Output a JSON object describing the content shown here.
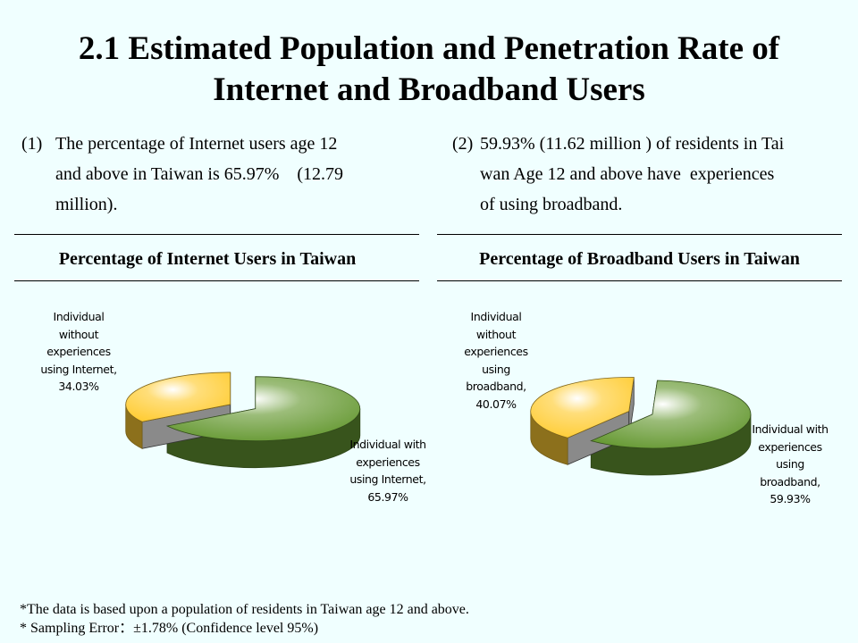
{
  "title_line1": "2.1 Estimated Population and Penetration Rate of",
  "title_line2": "Internet and Broadband Users",
  "intro_left": {
    "num": "(1)",
    "line1": "The percentage of Internet users age 12",
    "line2": "and above in Taiwan is 65.97%    (12.79",
    "line3": "million)."
  },
  "intro_right": {
    "num": "(2)",
    "line1": "59.93% (11.62 million ) of residents in Tai",
    "line2": "wan Age 12 and above have  experiences",
    "line3": "of using broadband."
  },
  "chart_data": [
    {
      "type": "pie",
      "title": "Percentage of Internet Users in Taiwan",
      "slices": [
        {
          "label_lines": [
            "Individual with",
            "experiences",
            "using Internet,",
            "65.97%"
          ],
          "value": 65.97,
          "color": "#669933"
        },
        {
          "label_lines": [
            "Individual",
            "without",
            "experiences",
            "using Internet,",
            "34.03%"
          ],
          "value": 34.03,
          "color": "#ffcc33"
        }
      ]
    },
    {
      "type": "pie",
      "title": "Percentage of Broadband Users in Taiwan",
      "slices": [
        {
          "label_lines": [
            "Individual with",
            "experiences",
            "using",
            "broadband,",
            "59.93%"
          ],
          "value": 59.93,
          "color": "#669933"
        },
        {
          "label_lines": [
            "Individual",
            "without",
            "experiences",
            "using",
            "broadband,",
            "40.07%"
          ],
          "value": 40.07,
          "color": "#ffcc33"
        }
      ]
    }
  ],
  "notes": {
    "line1": "*The data is based upon a population of residents in Taiwan age 12 and above.",
    "line2": "* Sampling Error：±1.78% (Confidence level 95%)"
  }
}
